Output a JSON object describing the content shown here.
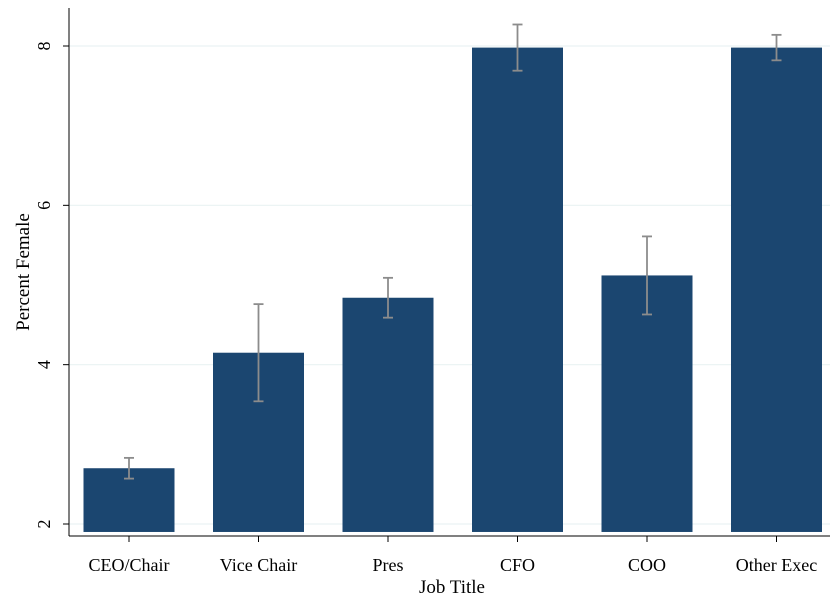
{
  "chart_data": {
    "type": "bar",
    "categories": [
      "CEO/Chair",
      "Vice Chair",
      "Pres",
      "CFO",
      "COO",
      "Other Exec"
    ],
    "values": [
      2.7,
      4.15,
      4.84,
      7.98,
      5.12,
      7.98
    ],
    "error_low": [
      2.57,
      3.54,
      4.59,
      7.69,
      4.63,
      7.82
    ],
    "error_high": [
      2.83,
      4.76,
      5.09,
      8.27,
      5.61,
      8.14
    ],
    "xlabel": "Job Title",
    "ylabel": "Percent Female",
    "ylim": [
      1.9,
      8.45
    ],
    "yticks": [
      2,
      4,
      6,
      8
    ],
    "grid": true,
    "bar_color": "#1b4670",
    "error_color": "#8c8c8c",
    "grid_color": "#eaf2f3"
  }
}
